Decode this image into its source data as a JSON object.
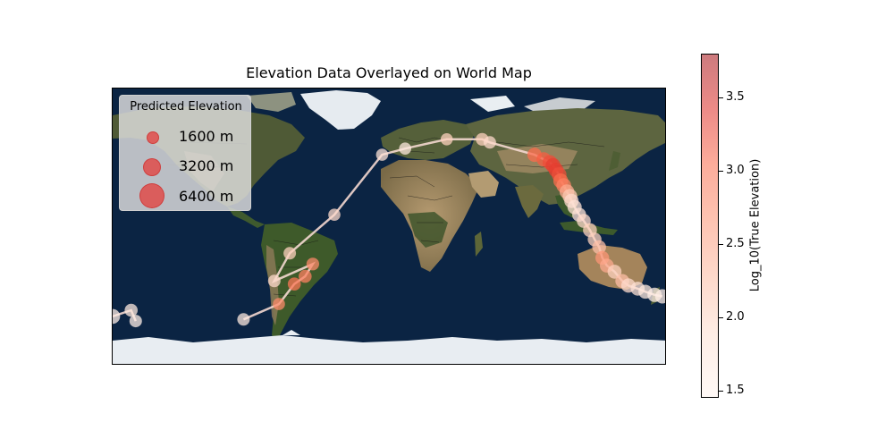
{
  "title": "Elevation Data Overlayed on World Map",
  "legend": {
    "title": "Predicted Elevation",
    "items": [
      {
        "label": "1600 m",
        "value": 1600
      },
      {
        "label": "3200 m",
        "value": 3200
      },
      {
        "label": "6400 m",
        "value": 6400
      }
    ]
  },
  "colorbar": {
    "label": "Log_10(True Elevation)",
    "range": [
      1.45,
      3.8
    ],
    "ticks": [
      "1.5",
      "2.0",
      "2.5",
      "3.0",
      "3.5"
    ],
    "colormap": "Reds"
  },
  "colors": {
    "ocean": "#0d2748",
    "land": "#5a5e3c",
    "ice": "#e8edf2",
    "marker": "#e43c3a",
    "path": "#f4d8d0"
  },
  "map": {
    "projection": "PlateCarree",
    "lon_range": [
      -180,
      180
    ],
    "lat_range": [
      -90,
      90
    ]
  },
  "chart_data": {
    "type": "scatter",
    "x_name": "longitude",
    "y_name": "latitude",
    "size_name": "predicted elevation (m)",
    "color_name": "log10 true elevation",
    "points": [
      {
        "lon": -180,
        "lat": -58,
        "size": 1800,
        "color": 1.6
      },
      {
        "lon": -168,
        "lat": -54,
        "size": 1200,
        "color": 1.7
      },
      {
        "lon": -165,
        "lat": -61,
        "size": 1000,
        "color": 1.6
      },
      {
        "lon": -95,
        "lat": -60,
        "size": 1000,
        "color": 1.7
      },
      {
        "lon": -72,
        "lat": -50,
        "size": 900,
        "color": 2.7
      },
      {
        "lon": -62,
        "lat": -37,
        "size": 1200,
        "color": 2.9
      },
      {
        "lon": -55,
        "lat": -32,
        "size": 1200,
        "color": 2.8
      },
      {
        "lon": -50,
        "lat": -24,
        "size": 1100,
        "color": 2.7
      },
      {
        "lon": -75,
        "lat": -35,
        "size": 1000,
        "color": 1.9
      },
      {
        "lon": -65,
        "lat": -17,
        "size": 1000,
        "color": 2.0
      },
      {
        "lon": -36,
        "lat": 8,
        "size": 900,
        "color": 1.9
      },
      {
        "lon": -5,
        "lat": 47,
        "size": 900,
        "color": 1.8
      },
      {
        "lon": 10,
        "lat": 51,
        "size": 900,
        "color": 1.7
      },
      {
        "lon": 37,
        "lat": 57,
        "size": 900,
        "color": 2.0
      },
      {
        "lon": 60,
        "lat": 57,
        "size": 1100,
        "color": 2.0
      },
      {
        "lon": 65,
        "lat": 55,
        "size": 1000,
        "color": 1.9
      },
      {
        "lon": 94,
        "lat": 47,
        "size": 1600,
        "color": 3.0
      },
      {
        "lon": 100,
        "lat": 44,
        "size": 1600,
        "color": 3.1
      },
      {
        "lon": 104,
        "lat": 42,
        "size": 1700,
        "color": 3.2
      },
      {
        "lon": 106,
        "lat": 40,
        "size": 1800,
        "color": 3.3
      },
      {
        "lon": 108,
        "lat": 37,
        "size": 1800,
        "color": 3.3
      },
      {
        "lon": 110,
        "lat": 34,
        "size": 1800,
        "color": 3.2
      },
      {
        "lon": 111,
        "lat": 30,
        "size": 1800,
        "color": 3.0
      },
      {
        "lon": 113,
        "lat": 27,
        "size": 1800,
        "color": 2.8
      },
      {
        "lon": 115,
        "lat": 23,
        "size": 1700,
        "color": 2.4
      },
      {
        "lon": 117,
        "lat": 20,
        "size": 1700,
        "color": 2.1
      },
      {
        "lon": 118,
        "lat": 17,
        "size": 1600,
        "color": 1.9
      },
      {
        "lon": 120,
        "lat": 13,
        "size": 1600,
        "color": 1.8
      },
      {
        "lon": 123,
        "lat": 8,
        "size": 1500,
        "color": 1.8
      },
      {
        "lon": 126,
        "lat": 4,
        "size": 1500,
        "color": 1.9
      },
      {
        "lon": 130,
        "lat": -2,
        "size": 1500,
        "color": 2.0
      },
      {
        "lon": 133,
        "lat": -8,
        "size": 1400,
        "color": 2.0
      },
      {
        "lon": 136,
        "lat": -13,
        "size": 1400,
        "color": 2.2
      },
      {
        "lon": 138,
        "lat": -20,
        "size": 1400,
        "color": 2.6
      },
      {
        "lon": 141,
        "lat": -25,
        "size": 1500,
        "color": 2.4
      },
      {
        "lon": 146,
        "lat": -29,
        "size": 1500,
        "color": 2.0
      },
      {
        "lon": 151,
        "lat": -35,
        "size": 1500,
        "color": 2.2
      },
      {
        "lon": 155,
        "lat": -38,
        "size": 1600,
        "color": 1.9
      },
      {
        "lon": 161,
        "lat": -40,
        "size": 1500,
        "color": 1.8
      },
      {
        "lon": 166,
        "lat": -42,
        "size": 1500,
        "color": 1.7
      },
      {
        "lon": 172,
        "lat": -44,
        "size": 1600,
        "color": 1.6
      },
      {
        "lon": 177,
        "lat": -45,
        "size": 1600,
        "color": 1.6
      }
    ]
  }
}
